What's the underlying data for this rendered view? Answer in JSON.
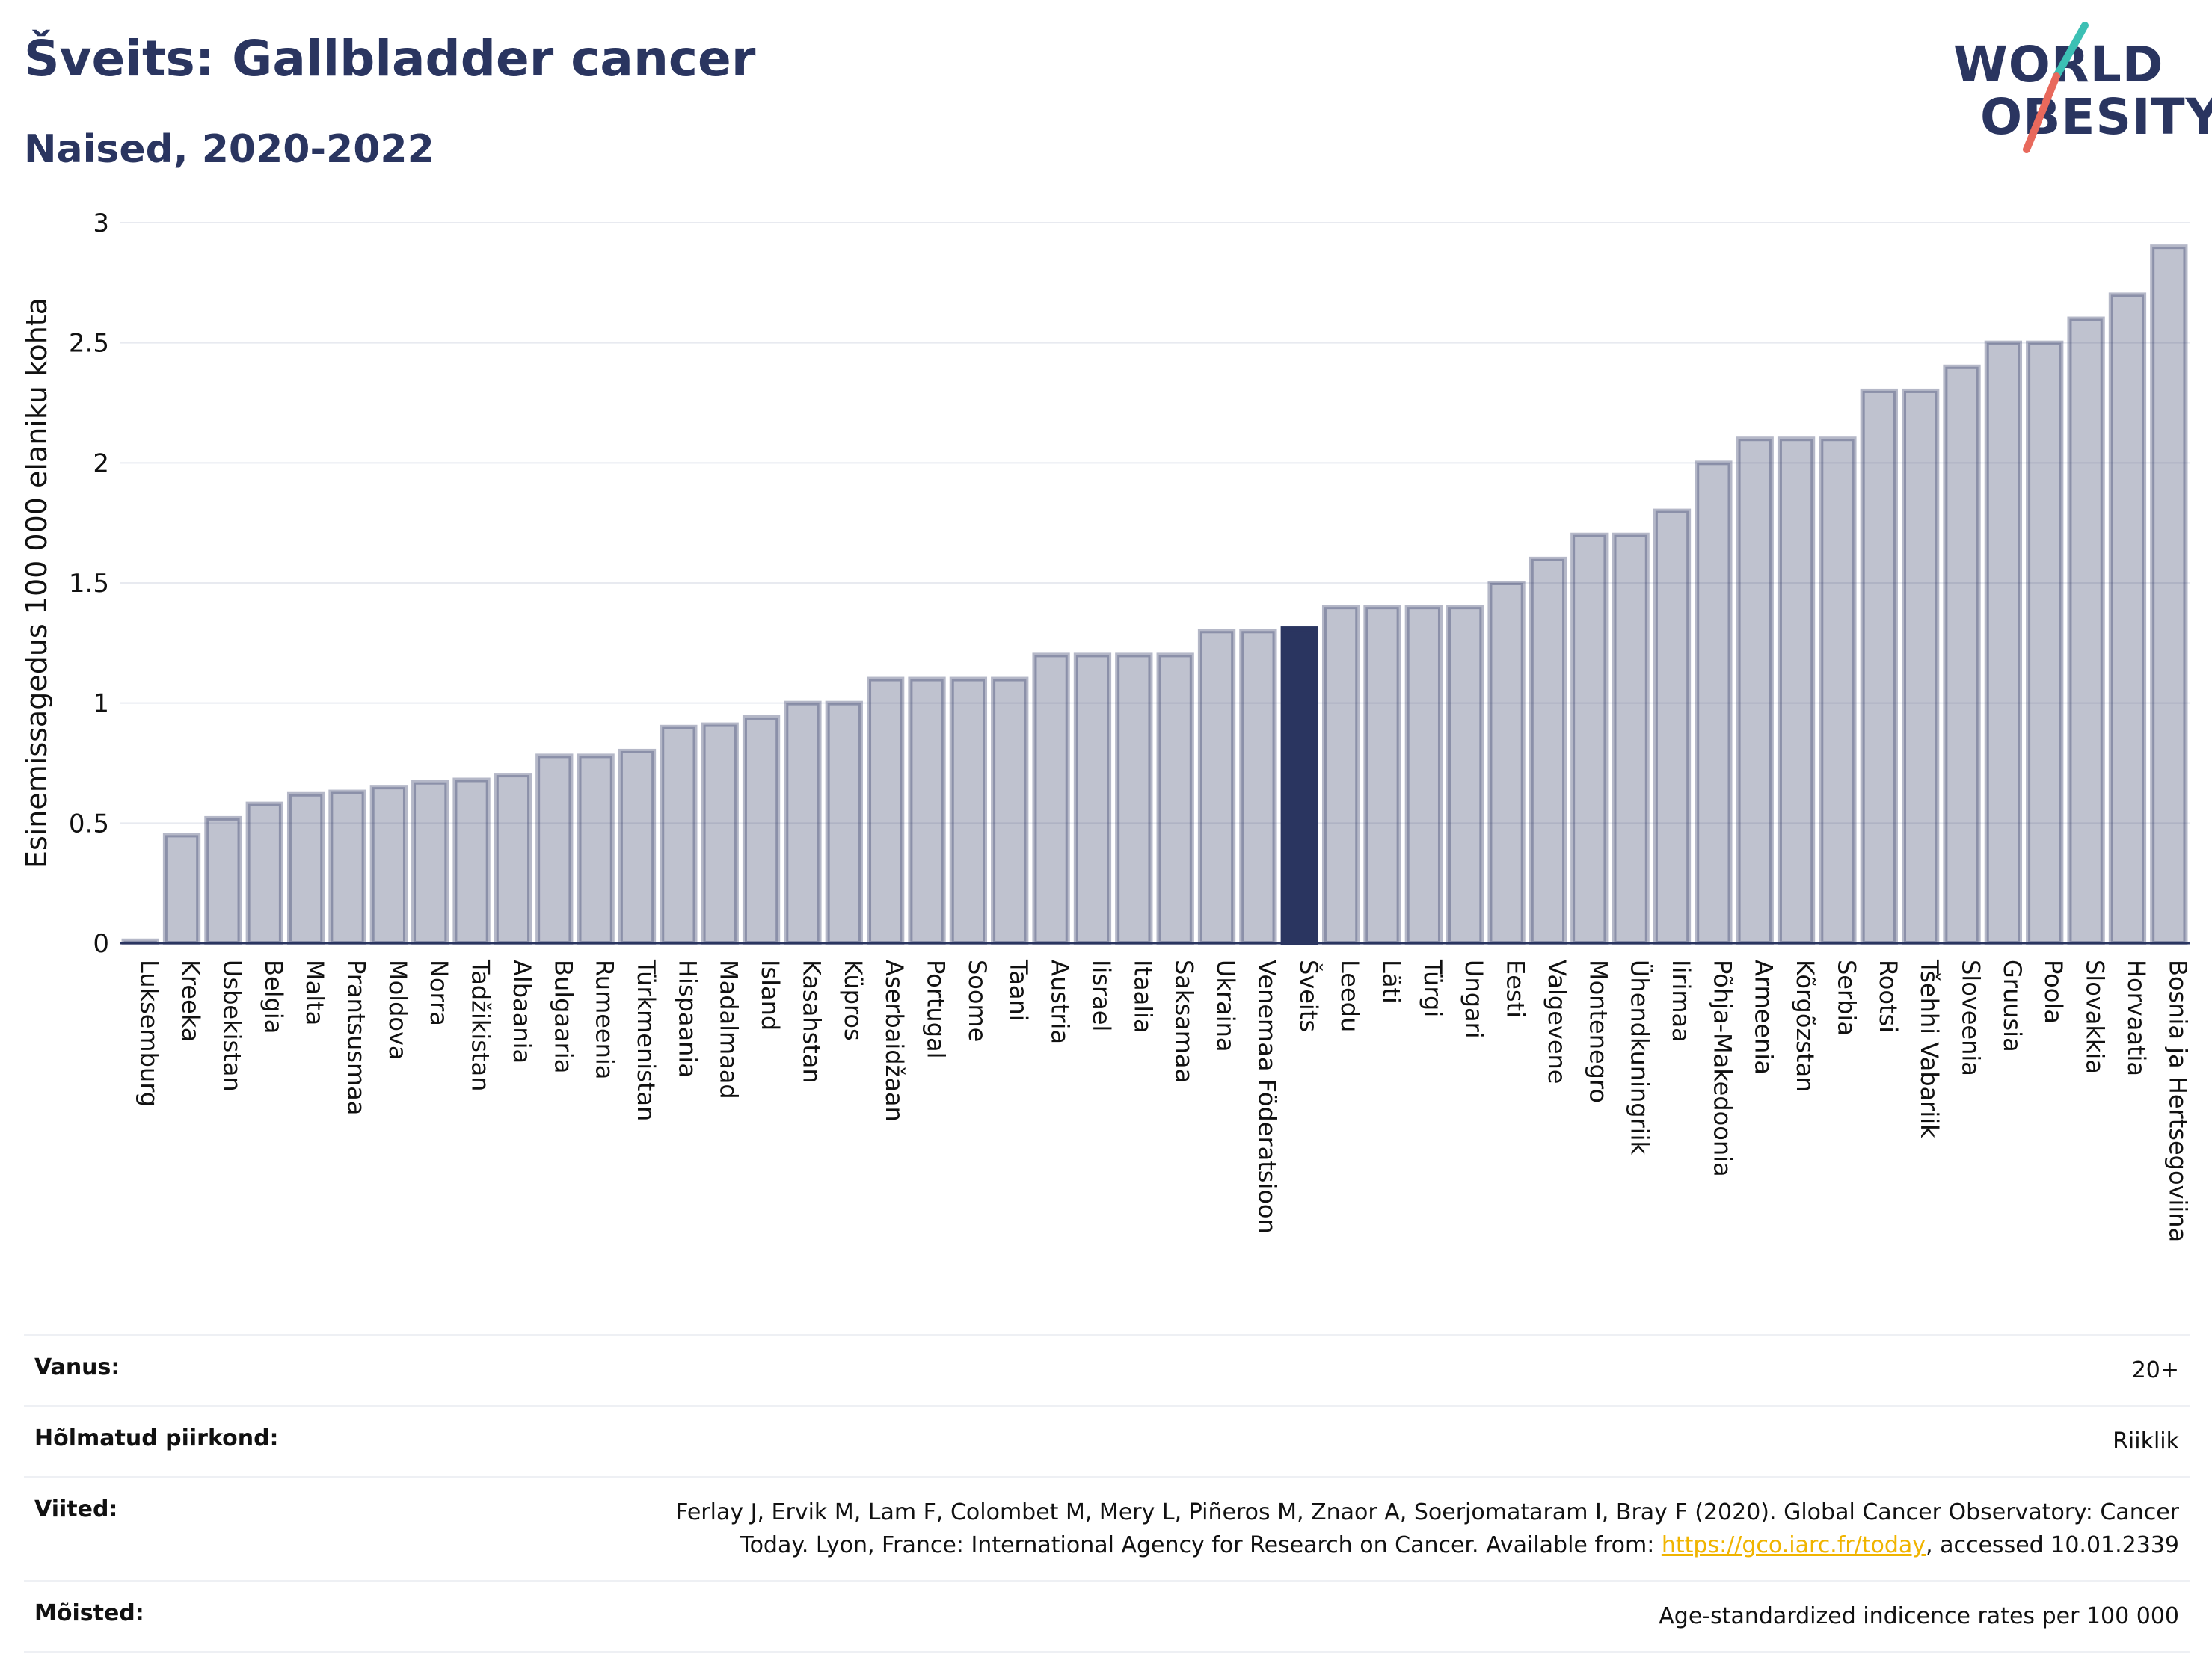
{
  "header": {
    "title": "Šveits: Gallbladder cancer",
    "subtitle": "Naised, 2020-2022"
  },
  "logo": {
    "line1": "WORLD",
    "line2": "OBESITY"
  },
  "chart_data": {
    "type": "bar",
    "ylabel": "Esinemissagedus 100 000 elaniku kohta",
    "xlabel": "",
    "ylim": [
      0,
      3
    ],
    "yticks": [
      "0",
      "0.5",
      "1",
      "1.5",
      "2",
      "2.5",
      "3"
    ],
    "grid": true,
    "highlight": "Šveits",
    "bar_color": "#2a3560",
    "bar_fill_opacity": 0.3,
    "categories": [
      "Luksemburg",
      "Kreeka",
      "Usbekistan",
      "Belgia",
      "Malta",
      "Prantsusmaa",
      "Moldova",
      "Norra",
      "Tadžikistan",
      "Albaania",
      "Bulgaaria",
      "Rumeenia",
      "Türkmenistan",
      "Hispaania",
      "Madalmaad",
      "Island",
      "Kasahstan",
      "Küpros",
      "Aserbaidžaan",
      "Portugal",
      "Soome",
      "Taani",
      "Austria",
      "Iisrael",
      "Itaalia",
      "Saksamaa",
      "Ukraina",
      "Venemaa Föderatsioon",
      "Šveits",
      "Leedu",
      "Läti",
      "Türgi",
      "Ungari",
      "Eesti",
      "Valgevene",
      "Montenegro",
      "Ühendkuningriik",
      "Iirimaa",
      "Põhja-Makedoonia",
      "Armeenia",
      "Kõrgõzstan",
      "Serbia",
      "Rootsi",
      "Tšehhi Vabariik",
      "Sloveenia",
      "Gruusia",
      "Poola",
      "Slovakkia",
      "Horvaatia",
      "Bosnia ja Hertsegoviina"
    ],
    "values": [
      0.01,
      0.45,
      0.52,
      0.58,
      0.62,
      0.63,
      0.65,
      0.67,
      0.68,
      0.7,
      0.78,
      0.78,
      0.8,
      0.9,
      0.91,
      0.94,
      1.0,
      1.0,
      1.1,
      1.1,
      1.1,
      1.1,
      1.2,
      1.2,
      1.2,
      1.2,
      1.3,
      1.3,
      1.31,
      1.4,
      1.4,
      1.4,
      1.4,
      1.5,
      1.6,
      1.7,
      1.7,
      1.8,
      2.0,
      2.1,
      2.1,
      2.1,
      2.3,
      2.3,
      2.4,
      2.5,
      2.5,
      2.6,
      2.7,
      2.9
    ]
  },
  "info": [
    {
      "label": "Vanus:",
      "value": "20+"
    },
    {
      "label": "Hõlmatud piirkond:",
      "value": "Riiklik"
    },
    {
      "label": "Viited:",
      "value_line1": "Ferlay J, Ervik M, Lam F, Colombet M, Mery L, Piñeros M, Znaor A, Soerjomataram I, Bray F (2020). Global Cancer Observatory: Cancer",
      "value_line2_pre": "Today. Lyon, France: International Agency for Research on Cancer. Available from: ",
      "link": "https://gco.iarc.fr/today",
      "value_line2_post": ", accessed 10.01.2339"
    },
    {
      "label": "Mõisted:",
      "value": "Age-standardized indicence rates per 100 000"
    }
  ],
  "colors": {
    "navy": "#2a3560",
    "teal": "#3cc0b4",
    "coral": "#e8695c",
    "link": "#f0b400"
  }
}
